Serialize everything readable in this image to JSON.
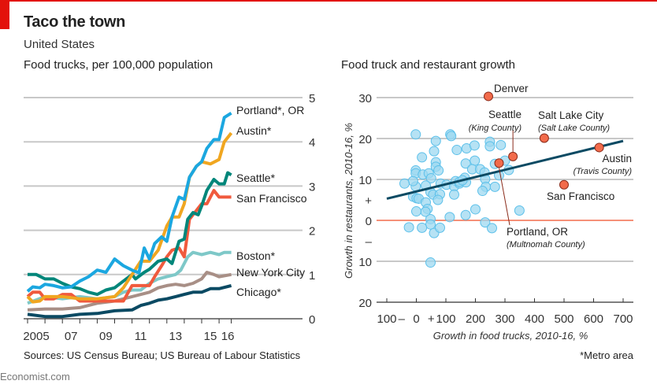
{
  "header": {
    "title": "Taco the town",
    "subtitle": "United States"
  },
  "footer": {
    "source": "Sources: US Census Bureau; US Bureau of Labour Statistics",
    "note": "*Metro area",
    "brand": "Economist.com"
  },
  "colors": {
    "accent": "#e3120b"
  },
  "chart_data": [
    {
      "type": "line",
      "title": "Food trucks, per 100,000 population",
      "xlabel": "",
      "ylabel": "",
      "xlim": [
        2005,
        2016.7
      ],
      "ylim": [
        0,
        5
      ],
      "y_ticks": [
        0,
        1,
        2,
        3,
        4,
        5
      ],
      "y_axis_side": "right",
      "x_tick_labels": [
        {
          "year": 2005,
          "label": "2005"
        },
        {
          "year": 2007,
          "label": "07"
        },
        {
          "year": 2009,
          "label": "09"
        },
        {
          "year": 2011,
          "label": "11"
        },
        {
          "year": 2013,
          "label": "13"
        },
        {
          "year": 2015,
          "label": "15"
        },
        {
          "year": 2016,
          "label": "16"
        }
      ],
      "grid": true,
      "series": [
        {
          "name": "Portland*, OR",
          "color": "#1ba7e0",
          "x": [
            2005,
            2005.3,
            2005.7,
            2006,
            2006.5,
            2007,
            2007.5,
            2008,
            2008.5,
            2009,
            2009.5,
            2010,
            2010.5,
            2011,
            2011.4,
            2011.7,
            2012,
            2012.3,
            2012.7,
            2013,
            2013.3,
            2013.7,
            2014,
            2014.3,
            2014.7,
            2015,
            2015.3,
            2015.7,
            2016,
            2016.3,
            2016.7
          ],
          "y": [
            0.62,
            0.72,
            0.7,
            0.78,
            0.75,
            0.7,
            0.72,
            0.85,
            0.95,
            1.1,
            1.05,
            1.35,
            1.2,
            1.1,
            1.04,
            1.6,
            1.35,
            1.7,
            1.85,
            1.75,
            2.3,
            2.75,
            2.7,
            3.2,
            3.45,
            3.55,
            3.85,
            4.05,
            4.05,
            4.55,
            4.65
          ]
        },
        {
          "name": "Austin*",
          "color": "#f0a620",
          "x": [
            2005,
            2005.3,
            2005.7,
            2006,
            2007,
            2008,
            2009,
            2010,
            2010.5,
            2011,
            2011.5,
            2012,
            2012.5,
            2013,
            2013.3,
            2013.7,
            2014,
            2014.3,
            2014.7,
            2015,
            2015.5,
            2016,
            2016.3,
            2016.7
          ],
          "y": [
            0.5,
            0.38,
            0.4,
            0.5,
            0.5,
            0.45,
            0.45,
            0.5,
            0.7,
            1.0,
            1.3,
            1.3,
            1.55,
            2.1,
            2.3,
            2.3,
            2.6,
            3.2,
            3.45,
            3.55,
            3.5,
            3.6,
            4.0,
            4.2
          ]
        },
        {
          "name": "Seattle*",
          "color": "#00867a",
          "x": [
            2005,
            2005.5,
            2006,
            2006.5,
            2007,
            2007.5,
            2008,
            2008.5,
            2009,
            2009.5,
            2010,
            2010.5,
            2011,
            2011.2,
            2011.7,
            2012,
            2012.5,
            2013,
            2013.3,
            2013.7,
            2014,
            2014.2,
            2014.5,
            2014.8,
            2015,
            2015.3,
            2015.7,
            2016,
            2016.3,
            2016.5,
            2016.7
          ],
          "y": [
            1.0,
            1.0,
            0.9,
            0.9,
            0.8,
            0.72,
            0.68,
            0.6,
            0.55,
            0.65,
            0.7,
            0.85,
            1.0,
            0.9,
            1.05,
            1.12,
            1.3,
            1.35,
            1.25,
            1.75,
            1.8,
            2.25,
            2.4,
            2.35,
            2.55,
            2.9,
            3.15,
            3.05,
            3.05,
            3.3,
            3.25
          ]
        },
        {
          "name": "San Francisco",
          "color": "#f05a3d",
          "x": [
            2005,
            2005.3,
            2005.7,
            2006,
            2006.5,
            2007,
            2007.5,
            2008,
            2009,
            2010,
            2010.5,
            2011,
            2011.5,
            2012,
            2012.3,
            2012.7,
            2013,
            2013.3,
            2013.7,
            2014,
            2014.3,
            2014.7,
            2015,
            2015.3,
            2015.7,
            2016,
            2016.3,
            2016.7
          ],
          "y": [
            0.5,
            0.6,
            0.6,
            0.45,
            0.45,
            0.55,
            0.55,
            0.4,
            0.4,
            0.4,
            0.4,
            0.75,
            0.75,
            0.75,
            0.95,
            1.2,
            1.4,
            1.55,
            1.6,
            1.4,
            2.25,
            2.45,
            2.6,
            2.6,
            2.9,
            2.75,
            2.75,
            2.75
          ]
        },
        {
          "name": "Boston*",
          "color": "#7ec8c8",
          "x": [
            2005,
            2006,
            2007,
            2008,
            2009,
            2010,
            2010.5,
            2011,
            2011.5,
            2012,
            2012.5,
            2013,
            2013.5,
            2013.8,
            2014.2,
            2014.5,
            2015,
            2015.5,
            2016,
            2016.3,
            2016.7
          ],
          "y": [
            0.35,
            0.5,
            0.45,
            0.5,
            0.45,
            0.5,
            0.6,
            0.65,
            0.65,
            0.8,
            0.9,
            0.95,
            1.0,
            1.1,
            1.4,
            1.5,
            1.45,
            1.5,
            1.45,
            1.5,
            1.5
          ]
        },
        {
          "name": "New York City",
          "color": "#a88f86",
          "x": [
            2005,
            2006,
            2007,
            2008,
            2008.5,
            2009,
            2010,
            2010.5,
            2011,
            2012,
            2012.5,
            2013,
            2013.5,
            2014,
            2014.5,
            2015,
            2015.3,
            2015.7,
            2016,
            2016.7
          ],
          "y": [
            0.2,
            0.22,
            0.22,
            0.25,
            0.3,
            0.35,
            0.4,
            0.45,
            0.5,
            0.6,
            0.7,
            0.75,
            0.78,
            0.75,
            0.8,
            0.9,
            1.05,
            1.0,
            0.95,
            1.0
          ]
        },
        {
          "name": "Chicago*",
          "color": "#0b4a63",
          "x": [
            2005,
            2006,
            2007,
            2008,
            2009,
            2010,
            2011,
            2011.5,
            2012,
            2012.5,
            2013,
            2013.5,
            2014,
            2014.5,
            2015,
            2015.5,
            2016,
            2016.7
          ],
          "y": [
            0.1,
            0.05,
            0.05,
            0.1,
            0.12,
            0.18,
            0.2,
            0.3,
            0.35,
            0.42,
            0.45,
            0.5,
            0.55,
            0.6,
            0.6,
            0.68,
            0.68,
            0.75
          ]
        }
      ]
    },
    {
      "type": "scatter",
      "title": "Food truck and restaurant growth",
      "xlabel": "Growth in food trucks, 2010-16, %",
      "ylabel": "Growth in restaurants, 2010-16, %",
      "xlim": [
        -100,
        700
      ],
      "ylim": [
        -20,
        30
      ],
      "x_tick_labels": [
        {
          "value": -100,
          "label": "100"
        },
        {
          "value": -50,
          "label": "–"
        },
        {
          "value": 0,
          "label": "0"
        },
        {
          "value": 50,
          "label": "+"
        },
        {
          "value": 100,
          "label": "100"
        },
        {
          "value": 200,
          "label": "200"
        },
        {
          "value": 300,
          "label": "300"
        },
        {
          "value": 400,
          "label": "400"
        },
        {
          "value": 500,
          "label": "500"
        },
        {
          "value": 600,
          "label": "600"
        },
        {
          "value": 700,
          "label": "700"
        }
      ],
      "x_ticks": [
        -100,
        0,
        100,
        200,
        300,
        400,
        500,
        600,
        700
      ],
      "y_tick_labels": [
        {
          "value": 30,
          "label": "30"
        },
        {
          "value": 20,
          "label": "20"
        },
        {
          "value": 10,
          "label": "10"
        },
        {
          "value": 5,
          "label": "+"
        },
        {
          "value": 0,
          "label": "0"
        },
        {
          "value": -5,
          "label": "–"
        },
        {
          "value": -10,
          "label": "10"
        },
        {
          "value": -20,
          "label": "20"
        }
      ],
      "y_grid": [
        30,
        20,
        10,
        -10
      ],
      "zero_line_color": "#f26b4b",
      "grid": true,
      "points_color": "#9ed8f0",
      "highlight_color": "#f26b4b",
      "points": [
        [
          -2,
          21
        ],
        [
          115,
          21
        ],
        [
          118,
          20.6
        ],
        [
          66,
          19.4
        ],
        [
          19,
          15.4
        ],
        [
          60,
          16.9
        ],
        [
          137,
          17.2
        ],
        [
          170,
          17.6
        ],
        [
          197,
          18.3
        ],
        [
          249,
          19.2
        ],
        [
          249,
          18.1
        ],
        [
          286,
          18.4
        ],
        [
          -2,
          12.2
        ],
        [
          -2,
          11.5
        ],
        [
          22,
          11.2
        ],
        [
          42,
          11.5
        ],
        [
          66,
          14.2
        ],
        [
          66,
          13.1
        ],
        [
          75,
          12.2
        ],
        [
          50,
          10.3
        ],
        [
          32,
          8.5
        ],
        [
          -2,
          8.3
        ],
        [
          -11,
          9.6
        ],
        [
          -40,
          9.0
        ],
        [
          82,
          9.0
        ],
        [
          102,
          8.7
        ],
        [
          133,
          9.6
        ],
        [
          128,
          8.3
        ],
        [
          146,
          9.0
        ],
        [
          164,
          10.4
        ],
        [
          168,
          9.3
        ],
        [
          167,
          13.9
        ],
        [
          198,
          14.6
        ],
        [
          189,
          12.5
        ],
        [
          216,
          12.5
        ],
        [
          231,
          11.7
        ],
        [
          233,
          10.1
        ],
        [
          235,
          8.2
        ],
        [
          224,
          7.2
        ],
        [
          266,
          8.2
        ],
        [
          266,
          13.8
        ],
        [
          280,
          11.0
        ],
        [
          300,
          14.6
        ],
        [
          313,
          12.3
        ],
        [
          128,
          6.3
        ],
        [
          -11,
          5.8
        ],
        [
          1,
          5.4
        ],
        [
          8,
          5.3
        ],
        [
          32,
          4.4
        ],
        [
          38,
          2.8
        ],
        [
          31,
          2.1
        ],
        [
          0,
          2.2
        ],
        [
          48,
          6.9
        ],
        [
          57,
          6.3
        ],
        [
          80,
          6.4
        ],
        [
          73,
          5.0
        ],
        [
          48,
          0.3
        ],
        [
          48,
          -1.0
        ],
        [
          -25,
          -1.7
        ],
        [
          19,
          -1.8
        ],
        [
          60,
          -3.1
        ],
        [
          80,
          -1.8
        ],
        [
          113,
          0.8
        ],
        [
          167,
          1.3
        ],
        [
          200,
          2.7
        ],
        [
          233,
          -0.5
        ],
        [
          256,
          -1.9
        ],
        [
          349,
          2.4
        ],
        [
          48,
          -10.3
        ],
        [
          146,
          9.4
        ],
        [
          156,
          9.8
        ]
      ],
      "highlighted": [
        {
          "name": "Denver",
          "sub": "",
          "x": 244,
          "y": 30.3
        },
        {
          "name": "Seattle",
          "sub": "(King County)",
          "x": 327,
          "y": 15.6
        },
        {
          "name": "Salt Lake City",
          "sub": "(Salt Lake County)",
          "x": 433,
          "y": 20.1
        },
        {
          "name": "Austin",
          "sub": "(Travis County)",
          "x": 619,
          "y": 17.8
        },
        {
          "name": "San Francisco",
          "sub": "",
          "x": 500,
          "y": 8.7
        },
        {
          "name": "Portland, OR",
          "sub": "(Multnomah County)",
          "x": 280,
          "y": 14.0
        }
      ],
      "trend_line": {
        "color": "#0b4a63",
        "x": [
          -100,
          700
        ],
        "y": [
          5.3,
          19.4
        ]
      }
    }
  ]
}
